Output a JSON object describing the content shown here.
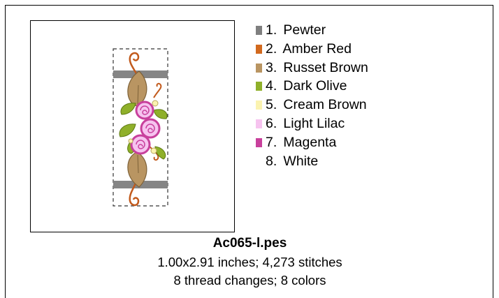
{
  "design": {
    "filename": "Ac065-l.pes",
    "size_stitches": "1.00x2.91 inches; 4,273 stitches",
    "changes_colors": "8 thread changes; 8 colors"
  },
  "colors": [
    {
      "number": "1.",
      "name": "Pewter",
      "swatch": "#7f7f7f"
    },
    {
      "number": "2.",
      "name": "Amber Red",
      "swatch": "#d2691e"
    },
    {
      "number": "3.",
      "name": "Russet Brown",
      "swatch": "#b99562"
    },
    {
      "number": "4.",
      "name": "Dark Olive",
      "swatch": "#8fb02a"
    },
    {
      "number": "5.",
      "name": "Cream Brown",
      "swatch": "#fbf3b0"
    },
    {
      "number": "6.",
      "name": "Light Lilac",
      "swatch": "#f6c3ef"
    },
    {
      "number": "7.",
      "name": "Magenta",
      "swatch": "#c8409c"
    },
    {
      "number": "8.",
      "name": "White",
      "swatch": "#ffffff"
    }
  ]
}
